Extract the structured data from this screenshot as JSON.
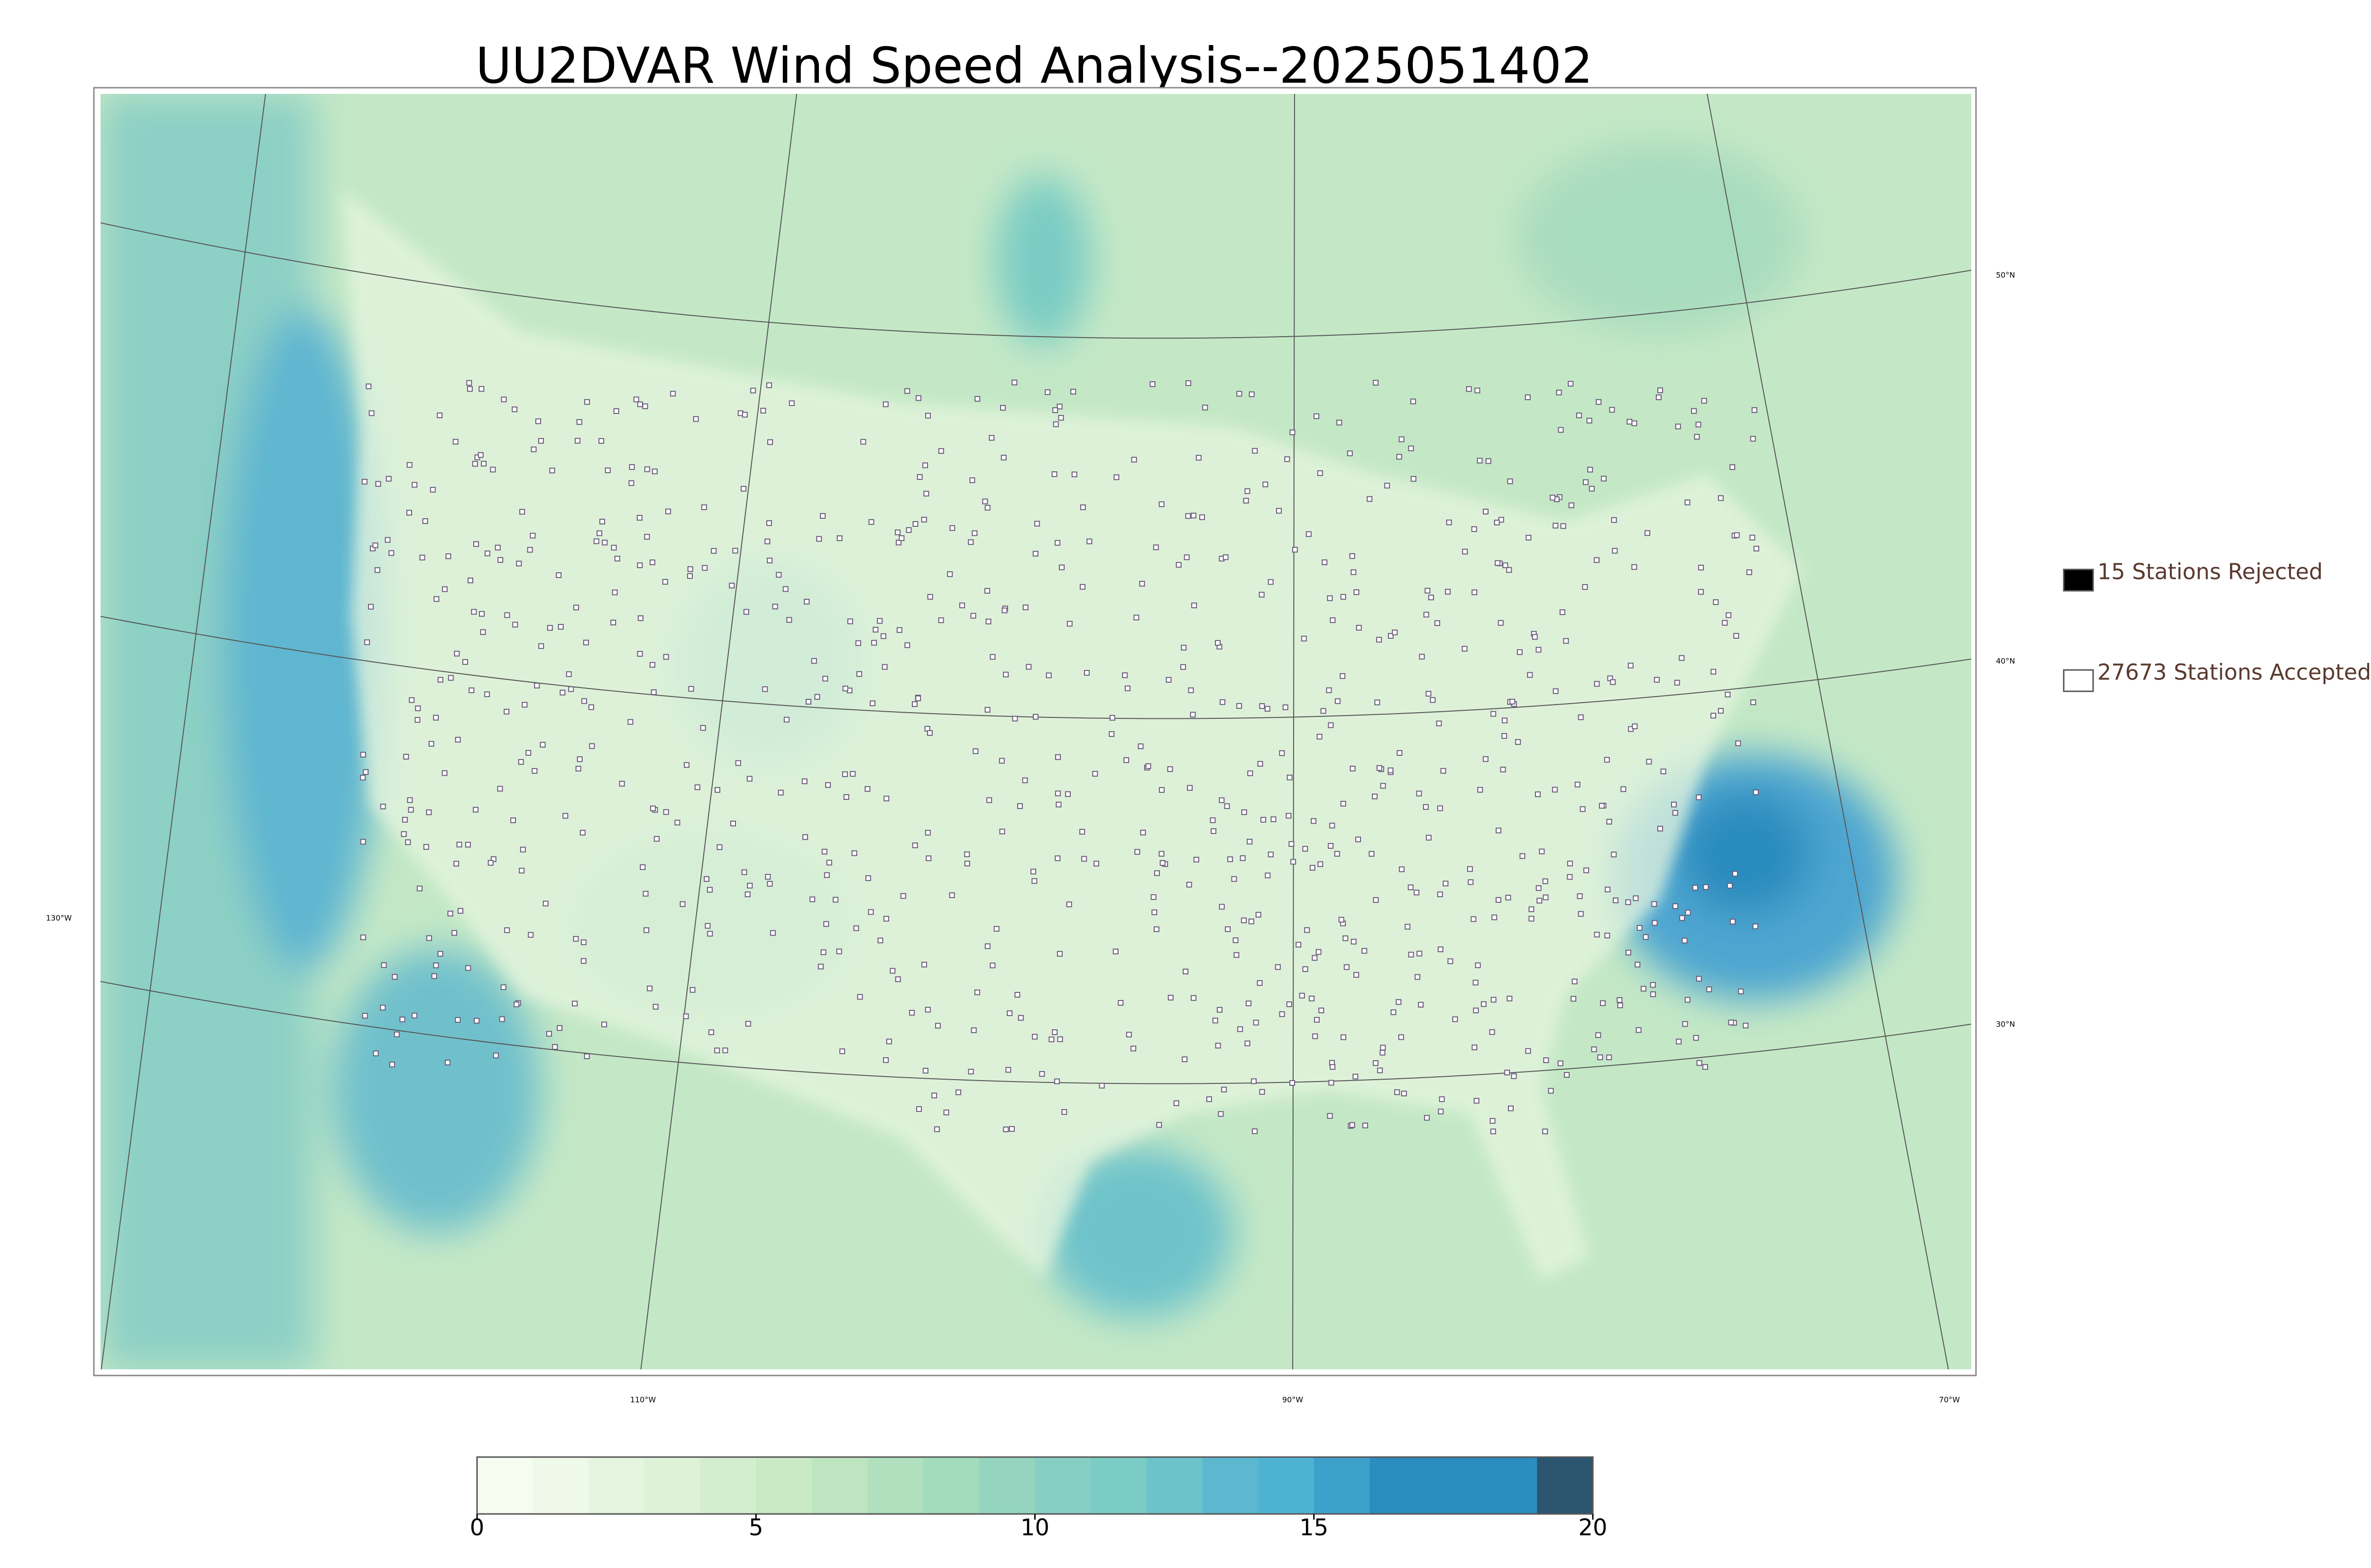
{
  "title": "UU2DVAR Wind Speed Analysis--2025051402",
  "map": {
    "lat_labels": [
      "50°N",
      "40°N",
      "30°N"
    ],
    "lon_labels": [
      "130°W",
      "110°W",
      "90°W",
      "70°W"
    ]
  },
  "legend": {
    "items": [
      {
        "label": "15 Stations Rejected",
        "color": "#000000"
      },
      {
        "label": "27673 Stations Accepted",
        "color": "#ffffff"
      }
    ]
  },
  "colorbar": {
    "range": [
      0,
      20
    ],
    "ticks": [
      0,
      5,
      10,
      15,
      20
    ],
    "colors": [
      "#f7fcf0",
      "#eff9ea",
      "#e5f5e0",
      "#ddf2d7",
      "#d3eece",
      "#c9eac5",
      "#bde5bf",
      "#b0e0bd",
      "#a3dbbd",
      "#95d5c0",
      "#87cfc4",
      "#7accc4",
      "#6cc3ca",
      "#5db8cf",
      "#4eb3d3",
      "#3ea1cc",
      "#2b8cbe",
      "#2b8cbe",
      "#2b8cbe",
      "#2c5670"
    ]
  }
}
